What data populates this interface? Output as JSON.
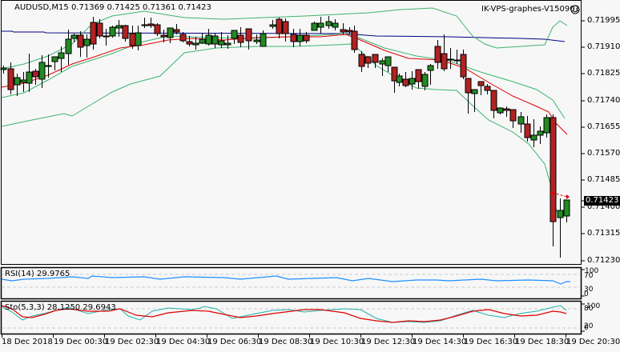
{
  "header": {
    "symbol_title": "AUDUSD,M15  0.71369 0.71425 0.71361 0.71423",
    "expert_label": "IK-VPS-graphes-V150901",
    "smiley_icon": "smiley-icon"
  },
  "price_axis": {
    "labels": [
      "0.71995",
      "0.71910",
      "0.71825",
      "0.71740",
      "0.71655",
      "0.71570",
      "0.71485",
      "0.71400",
      "0.71315",
      "0.71230"
    ],
    "current_price": "0.71423"
  },
  "rsi": {
    "label": "RSI(14) 29.9765",
    "axis_labels": [
      "100",
      "70",
      "30",
      "0"
    ]
  },
  "stoch": {
    "label": "Sto(5,3,3) 28.1250 29.6943",
    "axis_labels": [
      "100",
      "80",
      "20",
      "0"
    ]
  },
  "time_axis": {
    "labels": [
      "18 Dec 2018",
      "19 Dec 00:30",
      "19 Dec 02:30",
      "19 Dec 04:30",
      "19 Dec 06:30",
      "19 Dec 08:30",
      "19 Dec 10:30",
      "19 Dec 12:30",
      "19 Dec 14:30",
      "19 Dec 16:30",
      "19 Dec 18:30",
      "19 Dec 20:30"
    ]
  },
  "colors": {
    "bull": "#228b22",
    "bear": "#b22222",
    "ma_red": "#e00000",
    "bands": "#3cb371",
    "ma_long": "#000080",
    "rsi": "#1e90ff",
    "stoch_main": "#20b2aa",
    "stoch_signal": "#e00000"
  },
  "chart_data": {
    "type": "candlestick",
    "title": "AUDUSD,M15",
    "ohlc_last": {
      "open": 0.71369,
      "high": 0.71425,
      "low": 0.71361,
      "close": 0.71423
    },
    "ylim": [
      0.712,
      0.7204
    ],
    "y_ticks": [
      0.71995,
      0.7191,
      0.71825,
      0.7174,
      0.71655,
      0.7157,
      0.71485,
      0.714,
      0.71315,
      0.7123
    ],
    "x_ticks": [
      "18 Dec 2018",
      "19 Dec 00:30",
      "19 Dec 02:30",
      "19 Dec 04:30",
      "19 Dec 06:30",
      "19 Dec 08:30",
      "19 Dec 10:30",
      "19 Dec 12:30",
      "19 Dec 14:30",
      "19 Dec 16:30",
      "19 Dec 18:30",
      "19 Dec 20:30"
    ],
    "indicators": [
      {
        "name": "RSI(14)",
        "value": 29.9765,
        "levels": [
          70,
          30
        ]
      },
      {
        "name": "Sto(5,3,3)",
        "main": 28.125,
        "signal": 29.6943,
        "levels": [
          80,
          20
        ]
      },
      {
        "name": "Bollinger Bands"
      },
      {
        "name": "Moving Average (short)"
      },
      {
        "name": "Moving Average (long)"
      }
    ]
  }
}
